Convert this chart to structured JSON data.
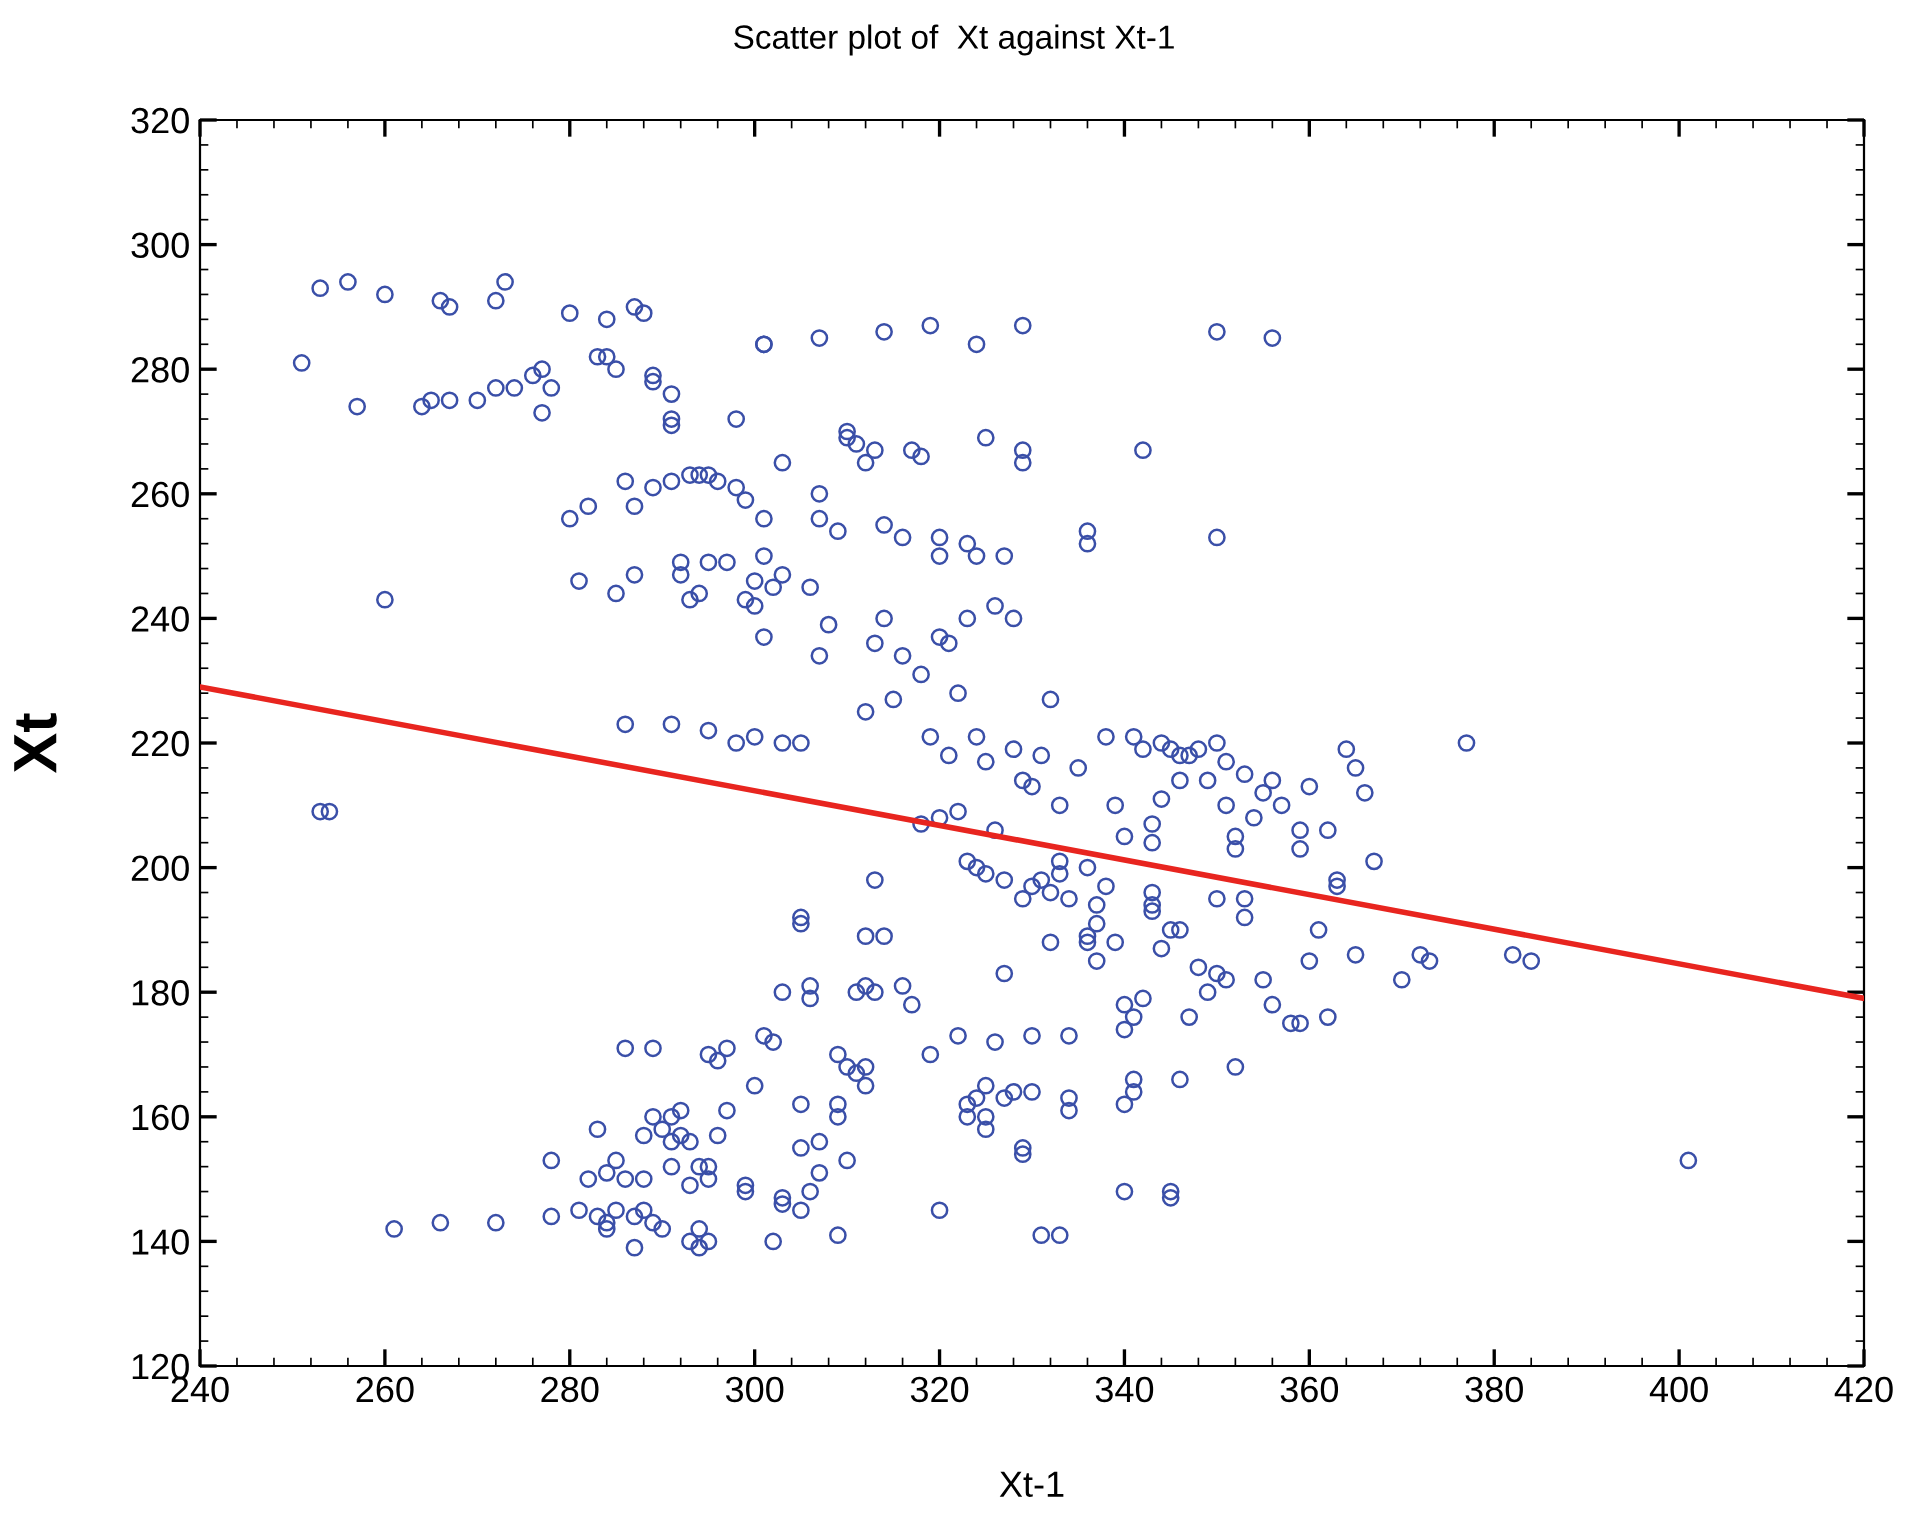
{
  "chart_data": {
    "type": "scatter",
    "title": "Scatter plot of  Xt against Xt-1",
    "xlabel": "Xt-1",
    "ylabel": "Xt",
    "xlim": [
      240,
      420
    ],
    "xticks": [
      240,
      260,
      280,
      300,
      320,
      340,
      360,
      380,
      400,
      420
    ],
    "ylim": [
      120,
      320
    ],
    "yticks": [
      120,
      140,
      160,
      180,
      200,
      220,
      240,
      260,
      280,
      300,
      320
    ],
    "grid": false,
    "legend": false,
    "marker": "circle",
    "series": [
      {
        "color": "#3a4fa8",
        "x": [
          251,
          253,
          256,
          260,
          257,
          264,
          265,
          266,
          267,
          267,
          270,
          272,
          272,
          273,
          274,
          276,
          277,
          277,
          278,
          280,
          283,
          284,
          284,
          285,
          287,
          288,
          289,
          289,
          291,
          291,
          291,
          298,
          301,
          301,
          307,
          314,
          319,
          324,
          329,
          350,
          356,
          280,
          281,
          282,
          285,
          286,
          287,
          287,
          289,
          291,
          292,
          292,
          293,
          294,
          295,
          296,
          293,
          294,
          295,
          297,
          298,
          299,
          299,
          300,
          300,
          301,
          301,
          302,
          303,
          303,
          286,
          291,
          295,
          298,
          300,
          301,
          303,
          305,
          306,
          307,
          307,
          307,
          308,
          309,
          310,
          310,
          311,
          312,
          313,
          312,
          313,
          314,
          314,
          315,
          316,
          316,
          317,
          318,
          318,
          319,
          320,
          320,
          320,
          321,
          321,
          322,
          323,
          323,
          324,
          324,
          325,
          325,
          326,
          327,
          328,
          329,
          329,
          331,
          332,
          336,
          336,
          342,
          350,
          253,
          254,
          260,
          318,
          320,
          322,
          323,
          324,
          325,
          326,
          327,
          328,
          329,
          329,
          330,
          330,
          331,
          332,
          333,
          333,
          334,
          335,
          336,
          337,
          338,
          338,
          339,
          340,
          341,
          342,
          343,
          343,
          343,
          344,
          344,
          345,
          346,
          347,
          346,
          348,
          349,
          350,
          350,
          351,
          351,
          352,
          352,
          353,
          354,
          355,
          356,
          357,
          359,
          359,
          360,
          362,
          364,
          365,
          366,
          367,
          370,
          372,
          373,
          377,
          382,
          384,
          363,
          363,
          361,
          360,
          365,
          356,
          358,
          359,
          362,
          355,
          353,
          353,
          351,
          350,
          349,
          347,
          348,
          346,
          345,
          344,
          343,
          343,
          342,
          341,
          340,
          340,
          339,
          337,
          337,
          336,
          336,
          334,
          333,
          332,
          330,
          330,
          329,
          329,
          334,
          334,
          331,
          333,
          340,
          345,
          345,
          340,
          341,
          341,
          346,
          352,
          401,
          261,
          266,
          272,
          278,
          278,
          281,
          283,
          282,
          283,
          284,
          284,
          285,
          284,
          285,
          286,
          286,
          287,
          287,
          288,
          288,
          288,
          289,
          289,
          289,
          290,
          290,
          291,
          291,
          291,
          292,
          292,
          293,
          293,
          293,
          294,
          294,
          294,
          295,
          295,
          295,
          295,
          296,
          296,
          297,
          297,
          299,
          299,
          300,
          301,
          302,
          302,
          303,
          303,
          303,
          305,
          305,
          305,
          305,
          305,
          306,
          306,
          306,
          307,
          307,
          309,
          309,
          309,
          309,
          310,
          310,
          311,
          311,
          312,
          312,
          312,
          312,
          313,
          313,
          314,
          316,
          317,
          319,
          320,
          322,
          323,
          323,
          324,
          325,
          325,
          325,
          326,
          327,
          327,
          328
        ],
        "values": [
          281,
          293,
          294,
          292,
          274,
          274,
          275,
          291,
          290,
          275,
          275,
          277,
          291,
          294,
          277,
          279,
          280,
          273,
          277,
          289,
          282,
          282,
          288,
          280,
          290,
          289,
          279,
          278,
          276,
          272,
          271,
          272,
          284,
          284,
          285,
          286,
          287,
          284,
          287,
          286,
          285,
          256,
          246,
          258,
          244,
          262,
          247,
          258,
          261,
          262,
          247,
          249,
          263,
          263,
          263,
          262,
          243,
          244,
          249,
          249,
          261,
          259,
          243,
          242,
          246,
          250,
          256,
          245,
          247,
          265,
          223,
          223,
          222,
          220,
          221,
          237,
          220,
          220,
          245,
          234,
          260,
          256,
          239,
          254,
          270,
          269,
          268,
          265,
          267,
          225,
          236,
          240,
          255,
          227,
          234,
          253,
          267,
          266,
          231,
          221,
          237,
          250,
          253,
          218,
          236,
          228,
          240,
          252,
          221,
          250,
          269,
          217,
          242,
          250,
          240,
          265,
          267,
          218,
          227,
          254,
          252,
          267,
          253,
          209,
          209,
          243,
          207,
          208,
          209,
          201,
          200,
          199,
          206,
          198,
          219,
          214,
          195,
          213,
          197,
          198,
          196,
          210,
          201,
          195,
          216,
          200,
          194,
          197,
          221,
          210,
          205,
          221,
          219,
          204,
          196,
          207,
          211,
          220,
          219,
          214,
          218,
          218,
          219,
          214,
          195,
          220,
          217,
          210,
          205,
          203,
          215,
          208,
          212,
          214,
          210,
          206,
          203,
          213,
          206,
          219,
          216,
          212,
          201,
          182,
          186,
          185,
          220,
          186,
          185,
          197,
          198,
          190,
          185,
          186,
          178,
          175,
          175,
          176,
          182,
          192,
          195,
          182,
          183,
          180,
          176,
          184,
          190,
          190,
          187,
          193,
          194,
          179,
          176,
          174,
          178,
          188,
          185,
          191,
          188,
          189,
          173,
          199,
          188,
          173,
          164,
          154,
          155,
          161,
          163,
          141,
          141,
          148,
          148,
          147,
          162,
          166,
          164,
          166,
          168,
          153,
          142,
          143,
          143,
          144,
          153,
          145,
          144,
          150,
          158,
          142,
          143,
          145,
          151,
          153,
          150,
          171,
          144,
          139,
          145,
          157,
          150,
          143,
          160,
          171,
          142,
          158,
          152,
          156,
          160,
          157,
          161,
          140,
          149,
          156,
          142,
          152,
          139,
          150,
          140,
          152,
          170,
          169,
          157,
          171,
          161,
          149,
          148,
          165,
          173,
          172,
          140,
          180,
          147,
          146,
          155,
          145,
          162,
          192,
          191,
          181,
          179,
          148,
          156,
          151,
          170,
          162,
          160,
          141,
          168,
          153,
          167,
          180,
          165,
          168,
          181,
          189,
          180,
          198,
          189,
          181,
          178,
          170,
          145,
          173,
          160,
          162,
          163,
          160,
          158,
          165,
          172,
          183,
          163,
          164
        ]
      },
      {
        "type": "line",
        "color": "#e8251f",
        "marker": "none",
        "x": [
          240,
          420
        ],
        "values": [
          229,
          179
        ]
      }
    ]
  }
}
